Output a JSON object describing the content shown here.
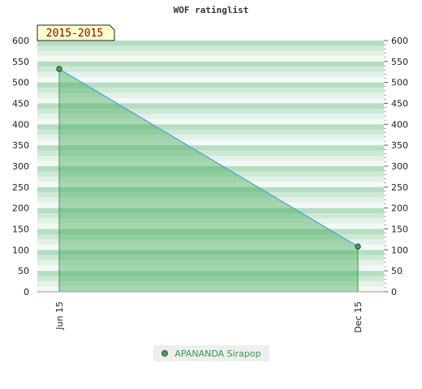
{
  "chart_data": {
    "type": "area",
    "title": "WOF ratinglist",
    "period_label": "2015-2015",
    "x": [
      "Jun 15",
      "Dec 15"
    ],
    "series": [
      {
        "name": "APANANDA Sirapop",
        "values": [
          532,
          108
        ]
      }
    ],
    "ylim": [
      0,
      600
    ],
    "yticks": [
      0,
      50,
      100,
      150,
      200,
      250,
      300,
      350,
      400,
      450,
      500,
      550,
      600
    ],
    "grid": "horizontal bands",
    "legend_position": "bottom-center",
    "colors": {
      "line": "#5aa4d8",
      "area": "#4cae5e",
      "point": "#4a9a5c",
      "band_dark": "#b3dcc0",
      "band_light": "#f3faf5",
      "label_box": "#ffffcc",
      "label_text": "#990000"
    }
  }
}
